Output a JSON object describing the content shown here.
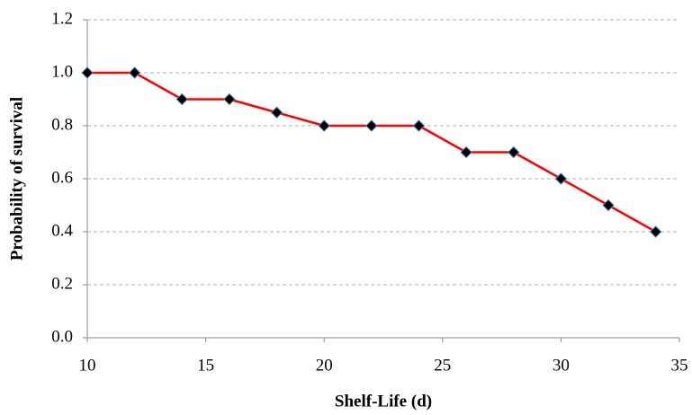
{
  "chart_data": {
    "type": "line",
    "xlabel": "Shelf-Life (d)",
    "ylabel": "Probability of survival",
    "x": [
      10,
      12,
      14,
      16,
      18,
      20,
      22,
      24,
      26,
      28,
      30,
      32,
      34
    ],
    "values": [
      1.0,
      1.0,
      0.9,
      0.9,
      0.85,
      0.8,
      0.8,
      0.8,
      0.7,
      0.7,
      0.6,
      0.5,
      0.4
    ],
    "color": "#ff0000",
    "marker_color": "#000000",
    "xlim": [
      10,
      35
    ],
    "xticks": [
      10,
      15,
      20,
      25,
      30,
      35
    ],
    "ylim": [
      0,
      1.2
    ],
    "yticks": [
      {
        "value": 0,
        "label": "0.0"
      },
      0.2,
      0.4,
      0.6,
      0.8,
      {
        "value": 1,
        "label": "1.0"
      },
      1.2
    ],
    "grid": true
  }
}
